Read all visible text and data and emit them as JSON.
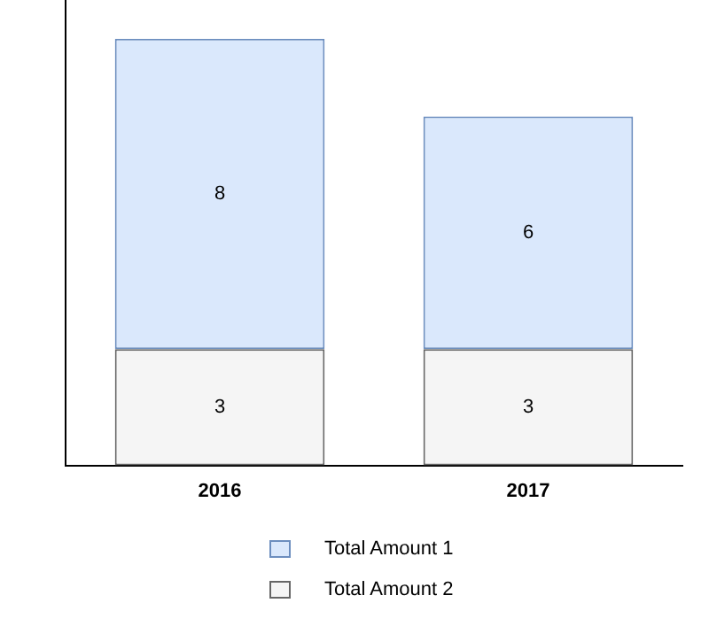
{
  "chart_data": {
    "type": "bar",
    "stacked": true,
    "categories": [
      "2016",
      "2017"
    ],
    "series": [
      {
        "name": "Total Amount 2",
        "color": "#f5f5f5",
        "values": [
          3,
          3
        ]
      },
      {
        "name": "Total Amount 1",
        "color": "#dae8fc",
        "values": [
          8,
          6
        ]
      }
    ],
    "data_labels": true,
    "legend": "bottom",
    "grid": false,
    "tick_labels": "x"
  }
}
